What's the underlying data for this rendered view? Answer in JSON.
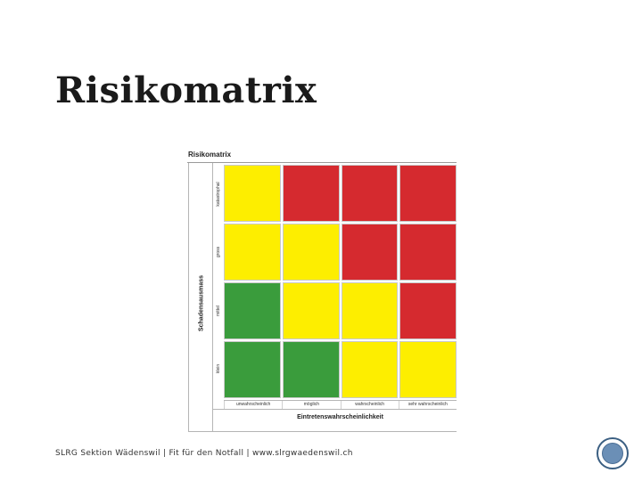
{
  "slide": {
    "title": "Risikomatrix",
    "footer": "SLRG Sektion Wädenswil | Fit für den Notfall | www.slrgwaedenswil.ch"
  },
  "figure": {
    "title": "Risikomatrix",
    "y_axis_title": "Schadensausmass",
    "x_axis_title": "Eintretenswahrscheinlichkeit",
    "rows": [
      "katastrophal",
      "gross",
      "mittel",
      "klein"
    ],
    "columns": [
      "unwahrscheinlich",
      "möglich",
      "wahrscheinlich",
      "sehr wahrscheinlich"
    ],
    "matrix": [
      [
        "yellow",
        "red",
        "red",
        "red"
      ],
      [
        "yellow",
        "yellow",
        "red",
        "red"
      ],
      [
        "green",
        "yellow",
        "yellow",
        "red"
      ],
      [
        "green",
        "green",
        "yellow",
        "yellow"
      ]
    ],
    "colors": {
      "green": "#3a9c3c",
      "yellow": "#fdee00",
      "red": "#d52a2f"
    }
  },
  "nav": {
    "icon": "circle-nav-icon"
  }
}
